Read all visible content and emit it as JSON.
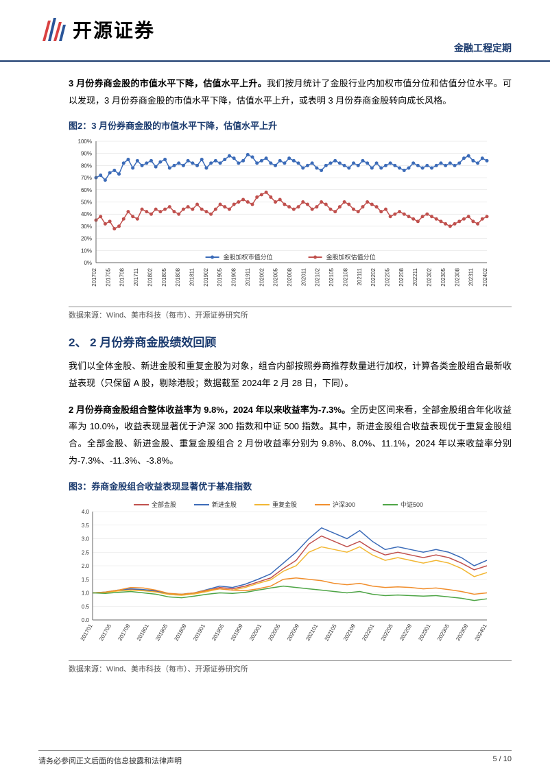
{
  "header": {
    "company": "开源证券",
    "category": "金融工程定期"
  },
  "para1": {
    "lead": "3 月份券商金股的市值水平下降，估值水平上升。",
    "rest": "我们按月统计了金股行业内加权市值分位和估值分位水平。可以发现，3 月份券商金股的市值水平下降，估值水平上升，或表明 3 月份券商金股转向成长风格。"
  },
  "fig2": {
    "title": "图2：3 月份券商金股的市值水平下降，估值水平上升",
    "source": "数据来源：Wind、美市科技（每市）、开源证券研究所",
    "chart": {
      "type": "line",
      "ylim": [
        0,
        100
      ],
      "ytick_step": 10,
      "ylabel_suffix": "%",
      "x_labels": [
        "201702",
        "201705",
        "201708",
        "201711",
        "201802",
        "201805",
        "201808",
        "201811",
        "201902",
        "201905",
        "201908",
        "201911",
        "202002",
        "202005",
        "202008",
        "202011",
        "202102",
        "202105",
        "202108",
        "202111",
        "202202",
        "202205",
        "202208",
        "202211",
        "202302",
        "202305",
        "202308",
        "202311",
        "202402"
      ],
      "legend": [
        "金股加权市值分位",
        "金股加权估值分位"
      ],
      "series_colors": [
        "#3b6bb8",
        "#c0504d"
      ],
      "axis_color": "#666666",
      "grid_color": "#d9d9d9",
      "background_color": "#ffffff",
      "label_fontsize": 8,
      "axis_fontsize": 8,
      "marker": "circle",
      "marker_size": 2.5,
      "line_width": 1.5,
      "series": {
        "mktcap": [
          70,
          72,
          68,
          74,
          76,
          73,
          82,
          85,
          78,
          84,
          80,
          82,
          84,
          79,
          83,
          85,
          78,
          80,
          82,
          80,
          84,
          82,
          80,
          85,
          78,
          82,
          84,
          82,
          85,
          88,
          86,
          82,
          84,
          89,
          87,
          82,
          84,
          86,
          82,
          80,
          84,
          82,
          86,
          84,
          82,
          78,
          80,
          82,
          78,
          76,
          80,
          82,
          84,
          82,
          80,
          78,
          82,
          80,
          84,
          82,
          78,
          82,
          78,
          80,
          82,
          80,
          78,
          76,
          78,
          82,
          80,
          78,
          80,
          78,
          80,
          82,
          80,
          82,
          80,
          82,
          86,
          88,
          84,
          82,
          86,
          84
        ],
        "valuation": [
          35,
          38,
          32,
          34,
          28,
          30,
          36,
          42,
          38,
          36,
          44,
          42,
          40,
          44,
          42,
          44,
          46,
          42,
          40,
          44,
          46,
          44,
          48,
          44,
          42,
          40,
          44,
          48,
          46,
          44,
          48,
          50,
          52,
          50,
          48,
          54,
          56,
          58,
          54,
          50,
          52,
          48,
          46,
          44,
          46,
          50,
          48,
          44,
          46,
          50,
          48,
          44,
          42,
          46,
          50,
          48,
          44,
          42,
          46,
          50,
          48,
          46,
          42,
          44,
          38,
          40,
          42,
          40,
          38,
          36,
          34,
          38,
          40,
          38,
          36,
          34,
          32,
          30,
          32,
          34,
          36,
          38,
          34,
          32,
          36,
          38
        ]
      }
    }
  },
  "section2": {
    "title": "2、 2 月份券商金股绩效回顾",
    "p1": "我们以全体金股、新进金股和重复金股为对象，组合内部按照券商推荐数量进行加权，计算各类金股组合最新收益表现（只保留 A 股，剔除港股；数据截至 2024年 2 月 28 日，下同）。",
    "p2_lead": "2 月份券商金股组合整体收益率为 9.8%，2024 年以来收益率为-7.3%。",
    "p2_rest": "全历史区间来看，全部金股组合年化收益率为 10.0%，收益表现显著优于沪深 300 指数和中证 500 指数。其中，新进金股组合收益表现优于重复金股组合。全部金股、新进金股、重复金股组合 2 月份收益率分别为 9.8%、8.0%、11.1%，2024 年以来收益率分别为-7.3%、-11.3%、-3.8%。"
  },
  "fig3": {
    "title": "图3：券商金股组合收益表现显著优于基准指数",
    "source": "数据来源：Wind、美市科技（每市）、开源证券研究所",
    "chart": {
      "type": "line",
      "ylim": [
        0.0,
        4.0
      ],
      "ytick_step": 0.5,
      "x_labels": [
        "201701",
        "201705",
        "201709",
        "201801",
        "201805",
        "201809",
        "201901",
        "201905",
        "201909",
        "202001",
        "202005",
        "202009",
        "202101",
        "202105",
        "202109",
        "202201",
        "202205",
        "202209",
        "202301",
        "202305",
        "202309",
        "202401"
      ],
      "legend": [
        "全部金股",
        "新进金股",
        "重复金股",
        "沪深300",
        "中证500"
      ],
      "series_colors": [
        "#c0504d",
        "#3b6bb8",
        "#f2b733",
        "#f18e2c",
        "#4ea546"
      ],
      "axis_color": "#666666",
      "grid_color": "#e0e0e0",
      "background_color": "#ffffff",
      "label_fontsize": 8,
      "axis_fontsize": 8,
      "line_width": 1.5,
      "series": {
        "all": [
          1.0,
          1.02,
          1.08,
          1.12,
          1.1,
          1.05,
          0.95,
          0.92,
          0.98,
          1.08,
          1.2,
          1.15,
          1.25,
          1.4,
          1.55,
          1.9,
          2.2,
          2.8,
          3.1,
          2.9,
          2.7,
          2.9,
          2.6,
          2.4,
          2.5,
          2.4,
          2.3,
          2.4,
          2.3,
          2.1,
          1.85,
          2.0
        ],
        "new": [
          1.0,
          1.03,
          1.1,
          1.15,
          1.12,
          1.08,
          0.97,
          0.95,
          1.0,
          1.12,
          1.25,
          1.2,
          1.32,
          1.5,
          1.7,
          2.1,
          2.5,
          3.0,
          3.4,
          3.2,
          3.0,
          3.3,
          2.9,
          2.6,
          2.7,
          2.6,
          2.5,
          2.6,
          2.5,
          2.3,
          2.0,
          2.2
        ],
        "repeat": [
          1.0,
          1.02,
          1.07,
          1.1,
          1.08,
          1.03,
          0.94,
          0.91,
          0.96,
          1.05,
          1.15,
          1.1,
          1.2,
          1.35,
          1.48,
          1.8,
          2.0,
          2.5,
          2.7,
          2.6,
          2.5,
          2.7,
          2.4,
          2.2,
          2.3,
          2.2,
          2.1,
          2.2,
          2.1,
          1.9,
          1.6,
          1.75
        ],
        "hs300": [
          1.0,
          1.03,
          1.1,
          1.2,
          1.18,
          1.1,
          0.98,
          0.95,
          1.0,
          1.1,
          1.15,
          1.1,
          1.08,
          1.15,
          1.25,
          1.5,
          1.55,
          1.5,
          1.45,
          1.35,
          1.3,
          1.35,
          1.25,
          1.2,
          1.22,
          1.2,
          1.15,
          1.18,
          1.12,
          1.05,
          0.95,
          1.0
        ],
        "zz500": [
          1.0,
          0.98,
          1.02,
          1.05,
          1.0,
          0.95,
          0.85,
          0.82,
          0.88,
          0.95,
          1.0,
          0.98,
          1.02,
          1.1,
          1.18,
          1.25,
          1.2,
          1.15,
          1.1,
          1.05,
          1.0,
          1.05,
          0.95,
          0.9,
          0.92,
          0.9,
          0.88,
          0.9,
          0.85,
          0.8,
          0.72,
          0.78
        ]
      }
    }
  },
  "footer": {
    "disclaimer": "请务必参阅正文后面的信息披露和法律声明",
    "page": "5 / 10"
  }
}
